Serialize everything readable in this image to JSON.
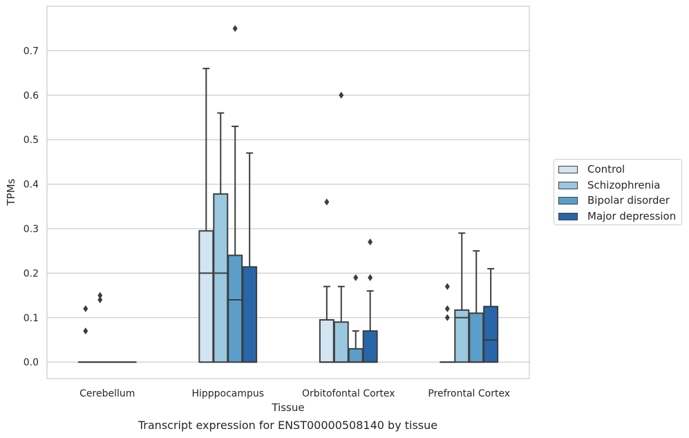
{
  "caption": "Transcript expression for ENST00000508140 by tissue",
  "legend": {
    "items": [
      {
        "label": "Control",
        "color": "#d3e4f3"
      },
      {
        "label": "Schizophrenia",
        "color": "#9ac8e0"
      },
      {
        "label": "Bipolar disorder",
        "color": "#5a9ec9"
      },
      {
        "label": "Major depression",
        "color": "#2965a9"
      }
    ]
  },
  "chart_data": {
    "type": "box",
    "xlabel": "Tissue",
    "ylabel": "TPMs",
    "ylim": [
      -0.037,
      0.8
    ],
    "yticks": [
      0.0,
      0.1,
      0.2,
      0.3,
      0.4,
      0.5,
      0.6,
      0.7
    ],
    "ytick_labels": [
      "0.0",
      "0.1",
      "0.2",
      "0.3",
      "0.4",
      "0.5",
      "0.6",
      "0.7"
    ],
    "grid": "horizontal",
    "legend_position": "right",
    "categories": [
      "Cerebellum",
      "Hipppocampus",
      "Orbitofontal Cortex",
      "Prefrontal Cortex"
    ],
    "series": [
      {
        "name": "Control",
        "color": "#d3e4f3",
        "boxes": [
          {
            "q1": 0.0,
            "median": 0.0,
            "q3": 0.0,
            "whislo": 0.0,
            "whishi": 0.0,
            "fliers": [
              0.07,
              0.12
            ]
          },
          {
            "q1": 0.0,
            "median": 0.2,
            "q3": 0.295,
            "whislo": 0.0,
            "whishi": 0.66,
            "fliers": []
          },
          {
            "q1": 0.0,
            "median": 0.0,
            "q3": 0.095,
            "whislo": 0.0,
            "whishi": 0.17,
            "fliers": [
              0.36
            ]
          },
          {
            "q1": 0.0,
            "median": 0.0,
            "q3": 0.0,
            "whislo": 0.0,
            "whishi": 0.0,
            "fliers": [
              0.1,
              0.12,
              0.17
            ]
          }
        ]
      },
      {
        "name": "Schizophrenia",
        "color": "#9ac8e0",
        "boxes": [
          {
            "q1": 0.0,
            "median": 0.0,
            "q3": 0.0,
            "whislo": 0.0,
            "whishi": 0.0,
            "fliers": [
              0.14,
              0.15
            ]
          },
          {
            "q1": 0.0,
            "median": 0.2,
            "q3": 0.378,
            "whislo": 0.0,
            "whishi": 0.56,
            "fliers": []
          },
          {
            "q1": 0.0,
            "median": 0.0,
            "q3": 0.09,
            "whislo": 0.0,
            "whishi": 0.17,
            "fliers": [
              0.6
            ]
          },
          {
            "q1": 0.0,
            "median": 0.1,
            "q3": 0.117,
            "whislo": 0.0,
            "whishi": 0.29,
            "fliers": []
          }
        ]
      },
      {
        "name": "Bipolar disorder",
        "color": "#5a9ec9",
        "boxes": [
          {
            "q1": 0.0,
            "median": 0.0,
            "q3": 0.0,
            "whislo": 0.0,
            "whishi": 0.0,
            "fliers": []
          },
          {
            "q1": 0.0,
            "median": 0.14,
            "q3": 0.24,
            "whislo": 0.0,
            "whishi": 0.53,
            "fliers": [
              0.75
            ]
          },
          {
            "q1": 0.0,
            "median": 0.0,
            "q3": 0.03,
            "whislo": 0.0,
            "whishi": 0.07,
            "fliers": [
              0.19
            ]
          },
          {
            "q1": 0.0,
            "median": 0.0,
            "q3": 0.11,
            "whislo": 0.0,
            "whishi": 0.25,
            "fliers": []
          }
        ]
      },
      {
        "name": "Major depression",
        "color": "#2965a9",
        "boxes": [
          {
            "q1": 0.0,
            "median": 0.0,
            "q3": 0.0,
            "whislo": 0.0,
            "whishi": 0.0,
            "fliers": []
          },
          {
            "q1": 0.0,
            "median": 0.0,
            "q3": 0.214,
            "whislo": 0.0,
            "whishi": 0.47,
            "fliers": []
          },
          {
            "q1": 0.0,
            "median": 0.0,
            "q3": 0.07,
            "whislo": 0.0,
            "whishi": 0.16,
            "fliers": [
              0.19,
              0.27
            ]
          },
          {
            "q1": 0.0,
            "median": 0.05,
            "q3": 0.125,
            "whislo": 0.0,
            "whishi": 0.21,
            "fliers": []
          }
        ]
      }
    ]
  }
}
